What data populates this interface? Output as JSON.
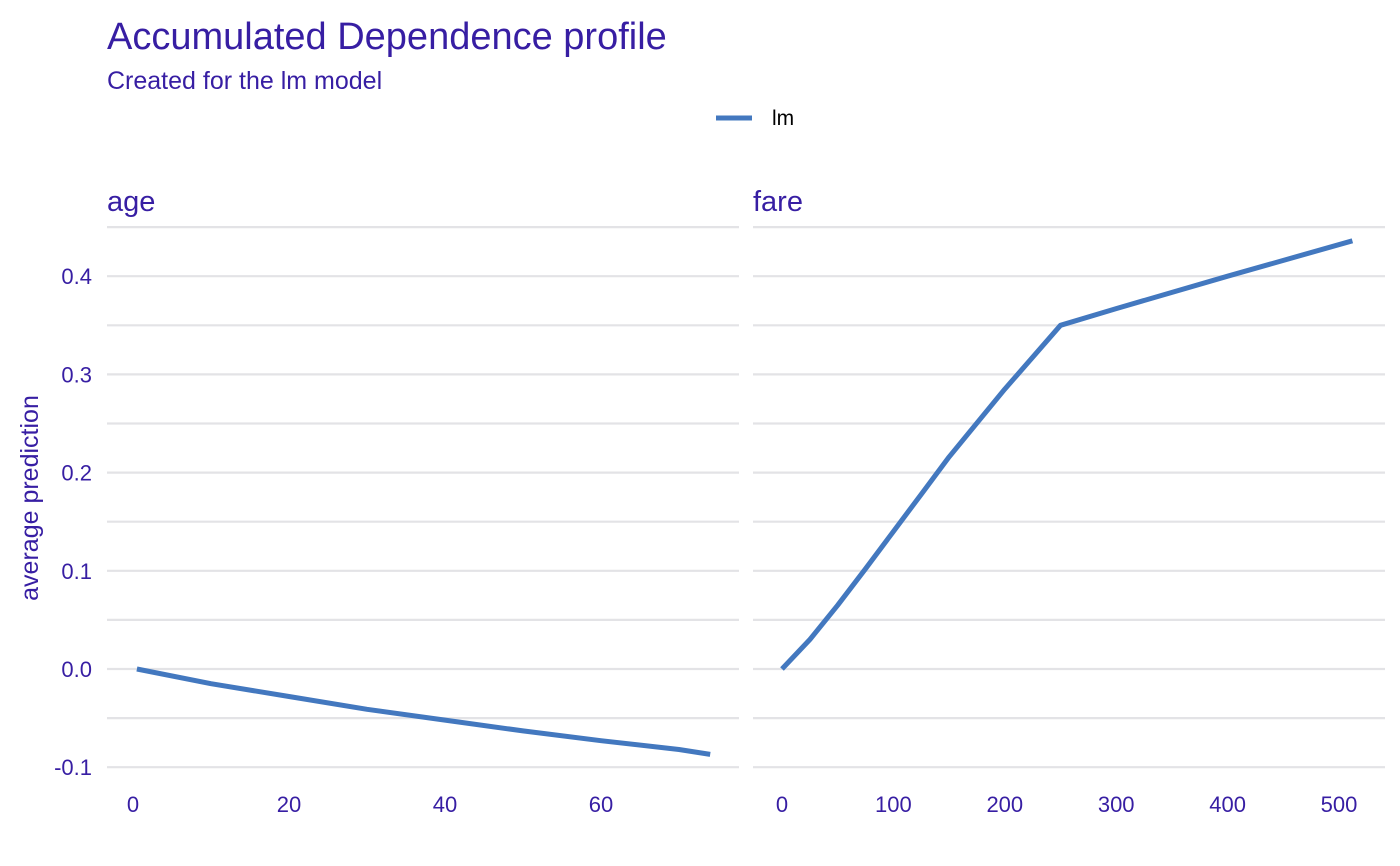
{
  "title": "Accumulated Dependence profile",
  "subtitle": "Created for the lm model",
  "colors": {
    "text": "#371ea3",
    "line": "#4378bf",
    "grid": "#e3e3e6"
  },
  "chart_data": {
    "type": "line",
    "title": "Accumulated Dependence profile",
    "subtitle": "Created for the lm model",
    "ylabel": "average prediction",
    "legend": {
      "position": "top",
      "entries": [
        "lm"
      ]
    },
    "grid": true,
    "ylim": [
      -0.1,
      0.45
    ],
    "y_ticks": [
      "-0.1",
      "0.0",
      "0.1",
      "0.2",
      "0.3",
      "0.4"
    ],
    "y_tick_values": [
      -0.1,
      0.0,
      0.1,
      0.2,
      0.3,
      0.4
    ],
    "panels": [
      {
        "name": "age",
        "xlim": [
          0,
          74
        ],
        "x_ticks": [
          "0",
          "20",
          "40",
          "60"
        ],
        "x_tick_values": [
          0,
          20,
          40,
          60
        ],
        "series": [
          {
            "name": "lm",
            "x": [
              0.5,
              10,
              20,
              30,
              40,
              50,
              60,
              70,
              74
            ],
            "y": [
              0.0,
              -0.015,
              -0.028,
              -0.041,
              -0.052,
              -0.063,
              -0.073,
              -0.082,
              -0.087
            ]
          }
        ]
      },
      {
        "name": "fare",
        "xlim": [
          0,
          512
        ],
        "x_ticks": [
          "0",
          "100",
          "200",
          "300",
          "400",
          "500"
        ],
        "x_tick_values": [
          0,
          100,
          200,
          300,
          400,
          500
        ],
        "series": [
          {
            "name": "lm",
            "x": [
              0,
              25,
              50,
              75,
              100,
              125,
              150,
              200,
              250,
              300,
              400,
              512
            ],
            "y": [
              0.0,
              0.03,
              0.065,
              0.102,
              0.14,
              0.178,
              0.216,
              0.285,
              0.35,
              0.367,
              0.4,
              0.436
            ]
          }
        ]
      }
    ]
  }
}
